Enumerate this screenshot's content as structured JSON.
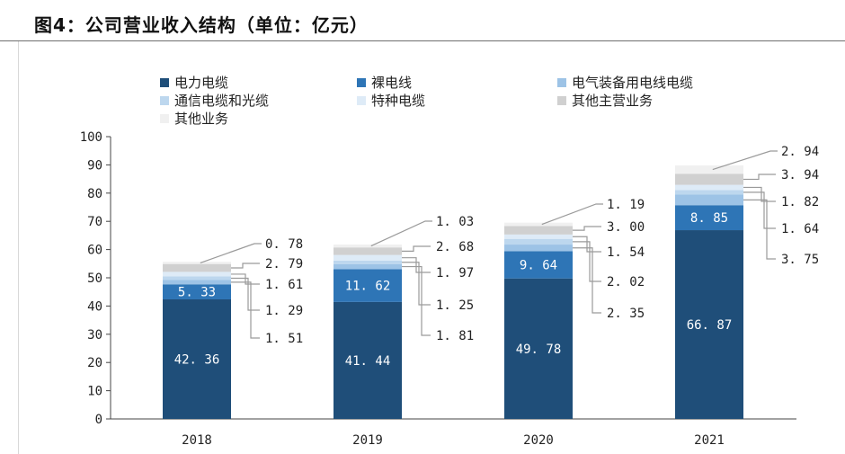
{
  "figure": {
    "title": "图4：公司营业收入结构（单位：亿元）"
  },
  "chart_data": {
    "type": "bar",
    "stacked": true,
    "title": "公司营业收入结构（单位：亿元）",
    "xlabel": "",
    "ylabel": "",
    "ylim": [
      0,
      100
    ],
    "yticks": [
      0,
      10,
      20,
      30,
      40,
      50,
      60,
      70,
      80,
      90,
      100
    ],
    "categories": [
      "2018",
      "2019",
      "2020",
      "2021"
    ],
    "series": [
      {
        "name": "电力电缆",
        "color": "#1f4e79",
        "values": [
          42.36,
          41.44,
          49.78,
          66.87
        ],
        "labels": [
          "42. 36",
          "41. 44",
          "49. 78",
          "66. 87"
        ]
      },
      {
        "name": "裸电线",
        "color": "#2e75b6",
        "values": [
          5.33,
          11.62,
          9.64,
          8.85
        ],
        "labels": [
          "5. 33",
          "11. 62",
          "9. 64",
          "8. 85"
        ]
      },
      {
        "name": "电气装备用电线电缆",
        "color": "#9dc3e6",
        "values": [
          1.51,
          1.81,
          2.35,
          3.75
        ],
        "labels": [
          "1. 51",
          "1. 81",
          "2. 35",
          "3. 75"
        ]
      },
      {
        "name": "通信电缆和光缆",
        "color": "#bdd7ee",
        "values": [
          1.29,
          1.25,
          2.02,
          1.64
        ],
        "labels": [
          "1. 29",
          "1. 25",
          "2. 02",
          "1. 64"
        ]
      },
      {
        "name": "特种电缆",
        "color": "#deebf7",
        "values": [
          1.61,
          1.97,
          1.54,
          1.82
        ],
        "labels": [
          "1. 61",
          "1. 97",
          "1. 54",
          "1. 82"
        ]
      },
      {
        "name": "其他主营业务",
        "color": "#d0d0d0",
        "values": [
          2.79,
          2.68,
          3.0,
          3.94
        ],
        "labels": [
          "2. 79",
          "2. 68",
          "3. 00",
          "3. 94"
        ]
      },
      {
        "name": "其他业务",
        "color": "#f0f0f0",
        "values": [
          0.78,
          1.03,
          1.19,
          2.94
        ],
        "labels": [
          "0. 78",
          "1. 03",
          "1. 19",
          "2. 94"
        ]
      }
    ],
    "legend_position": "top-left"
  }
}
